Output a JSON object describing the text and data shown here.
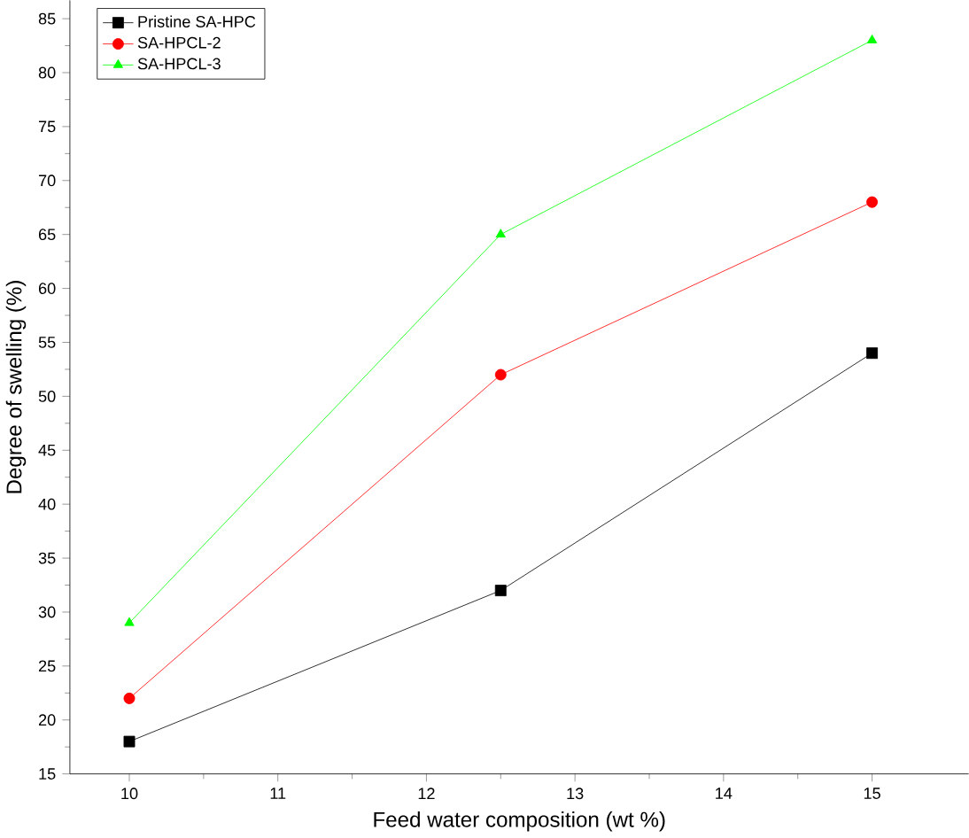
{
  "chart_data": {
    "type": "line",
    "xlabel": "Feed water composition (wt %)",
    "ylabel": "Degree of swelling (%)",
    "x": [
      10,
      12.5,
      15
    ],
    "series": [
      {
        "name": "Pristine SA-HPC",
        "color": "#000000",
        "marker": "square",
        "values": [
          18,
          32,
          54
        ]
      },
      {
        "name": "SA-HPCL-2",
        "color": "#ff0000",
        "marker": "circle",
        "values": [
          22,
          52,
          68
        ]
      },
      {
        "name": "SA-HPCL-3",
        "color": "#00ff00",
        "marker": "triangle",
        "values": [
          29,
          65,
          83
        ]
      }
    ],
    "xlim": [
      9.6,
      15.65
    ],
    "ylim": [
      15,
      86.7
    ],
    "xticks": [
      10,
      11,
      12,
      13,
      14,
      15
    ],
    "yticks": [
      15,
      20,
      25,
      30,
      35,
      40,
      45,
      50,
      55,
      60,
      65,
      70,
      75,
      80,
      85
    ],
    "legend": "top left",
    "grid": false,
    "line_style": "solid"
  }
}
